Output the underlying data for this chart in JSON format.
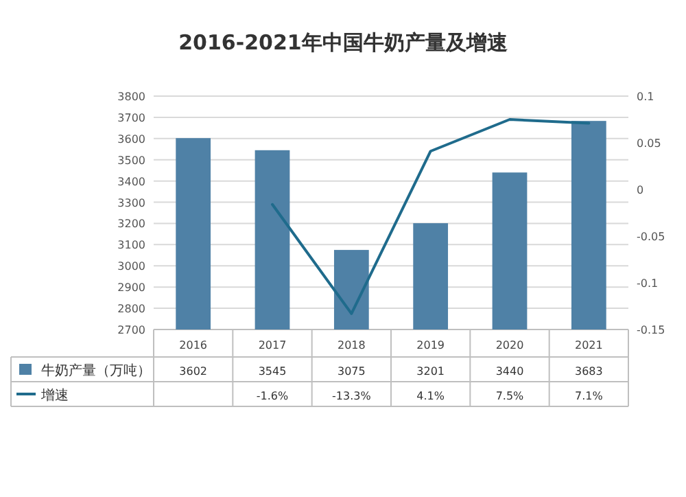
{
  "chart_data": {
    "type": "bar",
    "title": "2016-2021年中国牛奶产量及增速",
    "categories": [
      "2016",
      "2017",
      "2018",
      "2019",
      "2020",
      "2021"
    ],
    "series": [
      {
        "name": "牛奶产量（万吨）",
        "color": "#4f81a6",
        "values": [
          3602,
          3545,
          3075,
          3201,
          3440,
          3683
        ],
        "value_labels": [
          "3602",
          "3545",
          "3075",
          "3201",
          "3440",
          "3683"
        ]
      },
      {
        "name": "增速",
        "type": "line",
        "axis": "y2",
        "color": "#1f6b8c",
        "values": [
          null,
          -0.016,
          -0.133,
          0.041,
          0.075,
          0.071
        ],
        "value_labels": [
          null,
          "-1.6%",
          "-13.3%",
          "4.1%",
          "7.5%",
          "7.1%"
        ]
      }
    ],
    "ylim": [
      2700,
      3800
    ],
    "yticks": [
      2700,
      2800,
      2900,
      3000,
      3100,
      3200,
      3300,
      3400,
      3500,
      3600,
      3700,
      3800
    ],
    "y2lim": [
      -0.15,
      0.1
    ],
    "y2ticks": [
      -0.15,
      -0.1,
      -0.05,
      0,
      0.05,
      0.1
    ],
    "grid": "y",
    "legend": "bottom"
  }
}
